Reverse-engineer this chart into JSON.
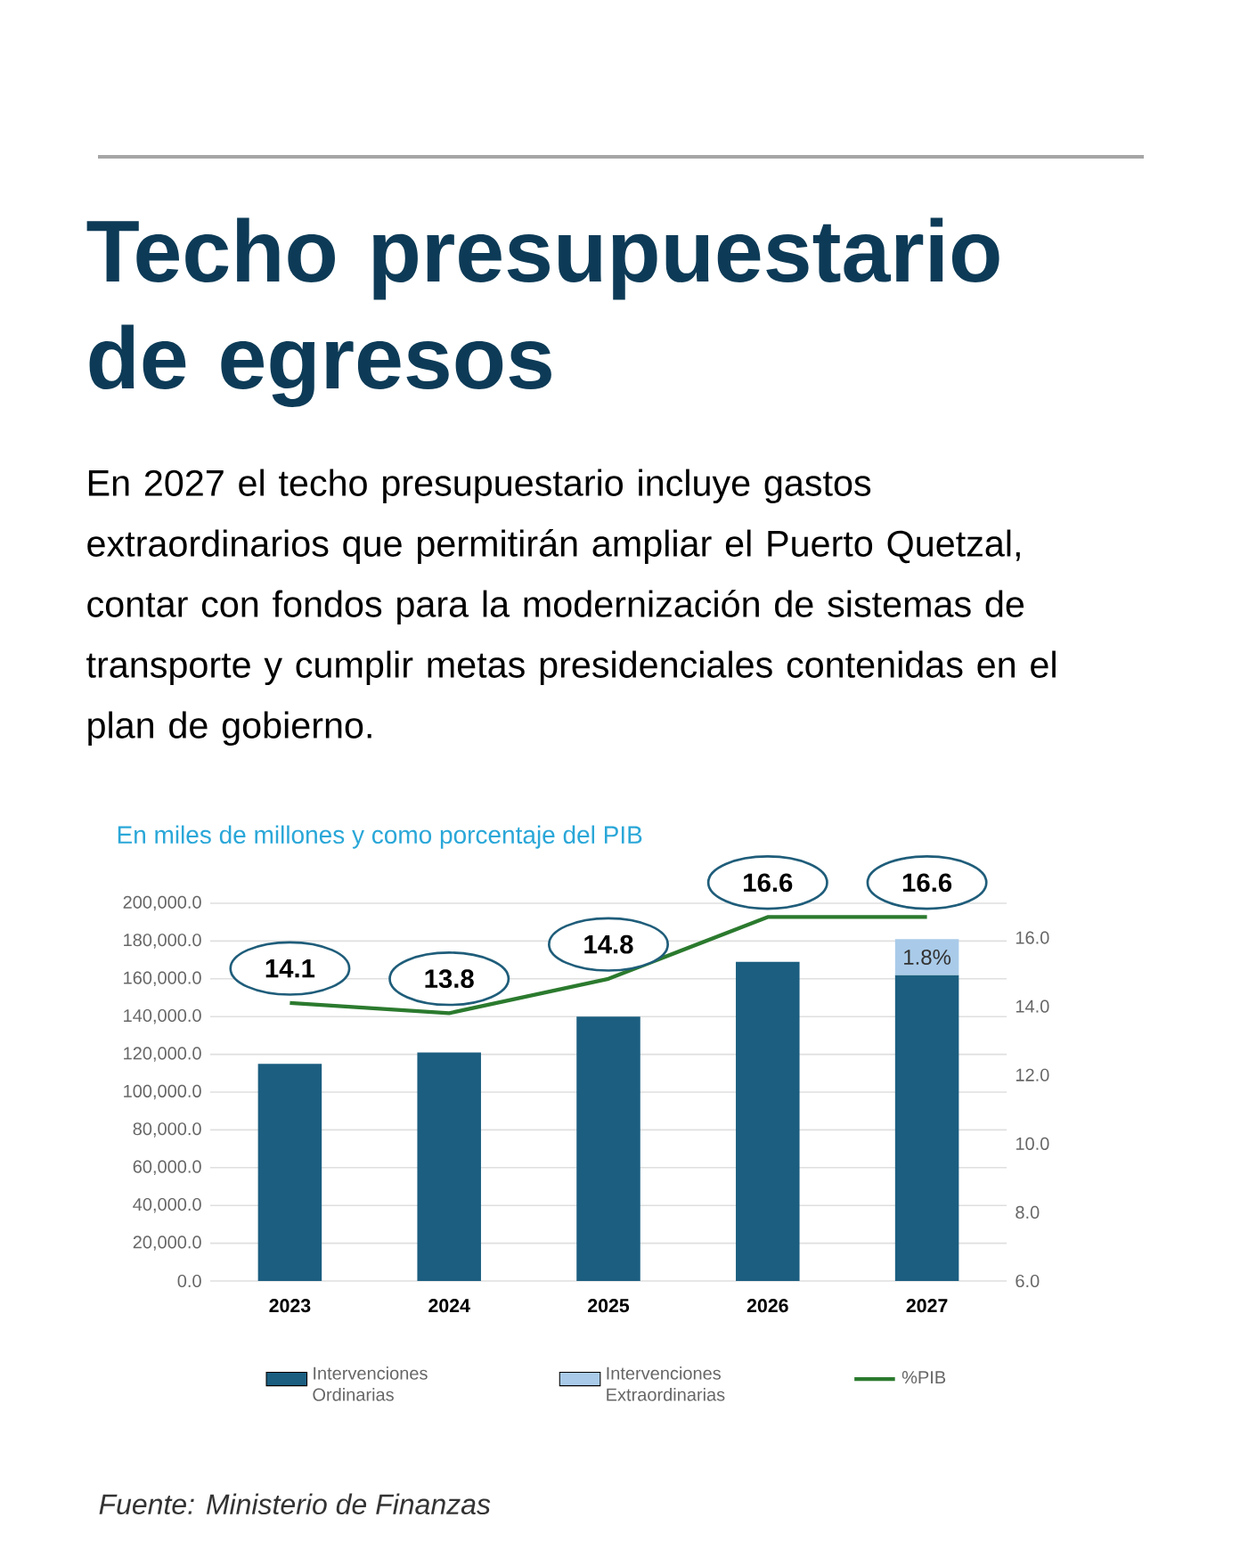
{
  "chart_data": {
    "type": "bar",
    "title": "Techo presupuestario de egresos",
    "subtitle": "En 2027 el techo presupuestario incluye gastos extraordinarios que permitirán ampliar el Puerto Quetzal, contar con fondos para la modernización de sistemas de transporte y cumplir metas presidenciales contenidas en el plan de gobierno.",
    "annotations": [
      "En miles de millones y como porcentaje del PIB",
      "*Fuente: Ministerio de Finanzas*",
      "1.8%"
    ],
    "categories": [
      "2023",
      "2024",
      "2025",
      "2026",
      "2027"
    ],
    "stacked": true,
    "series": [
      {
        "name": "Intervenciones Ordinarias",
        "color": "#1b5e80",
        "values": [
          115000,
          121000,
          140000,
          169000,
          162000
        ]
      },
      {
        "name": "Intervenciones Extraordinarias",
        "color": "#a9cbe9",
        "values": [
          null,
          null,
          null,
          null,
          19000
        ]
      },
      {
        "name": "%PIB",
        "type": "line",
        "axis": "y2",
        "color": "#2b7a2e",
        "values": [
          14.1,
          13.8,
          14.8,
          16.6,
          16.6
        ],
        "value_labels": [
          "14.1",
          "13.8",
          "14.8",
          "16.6",
          "16.6"
        ]
      }
    ],
    "ylim": [
      0,
      200000
    ],
    "yticks": [
      {
        "value": 0,
        "label": "0.0"
      },
      {
        "value": 20000,
        "label": "20,000.0"
      },
      {
        "value": 40000,
        "label": "40,000.0"
      },
      {
        "value": 60000,
        "label": "60,000.0"
      },
      {
        "value": 80000,
        "label": "80,000.0"
      },
      {
        "value": 100000,
        "label": "100,000.0"
      },
      {
        "value": 120000,
        "label": "120,000.0"
      },
      {
        "value": 140000,
        "label": "140,000.0"
      },
      {
        "value": 160000,
        "label": "160,000.0"
      },
      {
        "value": 180000,
        "label": "180,000.0"
      },
      {
        "value": 200000,
        "label": "200,000.0"
      }
    ],
    "y2lim": [
      6,
      17
    ],
    "y2ticks": [
      {
        "value": 6,
        "label": "6.0"
      },
      {
        "value": 8,
        "label": "8.0"
      },
      {
        "value": 10,
        "label": "10.0"
      },
      {
        "value": 12,
        "label": "12.0"
      },
      {
        "value": 14,
        "label": "14.0"
      },
      {
        "value": 16,
        "label": "16.0"
      }
    ],
    "grid": "y",
    "legend": "bottom",
    "marker": "none",
    "line_style": "solid"
  }
}
